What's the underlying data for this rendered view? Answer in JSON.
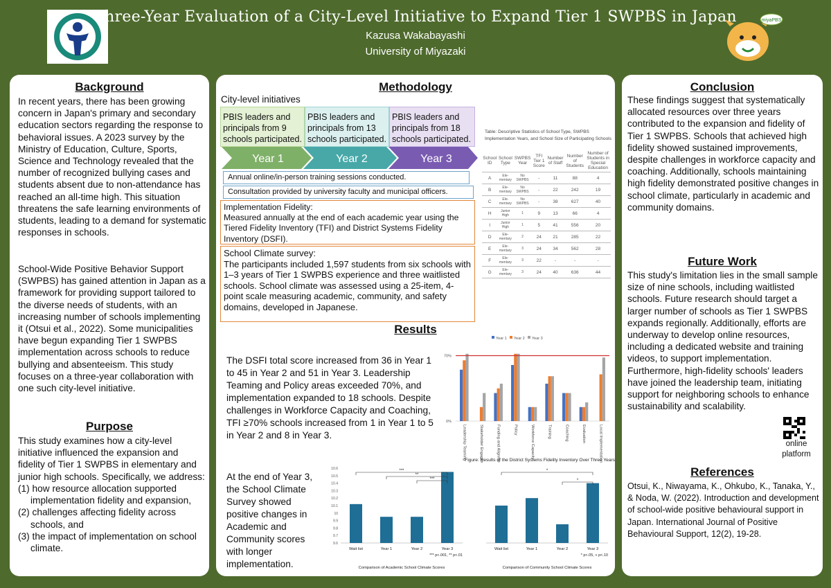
{
  "header": {
    "title": "Three-Year Evaluation of a City-Level Initiative to Expand Tier 1 SWPBS in Japan",
    "author": "Kazusa Wakabayashi",
    "affiliation": "University of Miyazaki",
    "mascot_text": "miyaPBS"
  },
  "background": {
    "heading": "Background",
    "p1": "In recent years, there has been growing concern in Japan's primary and secondary education sectors regarding the response to behavioral issues. A 2023 survey by the Ministry of Education, Culture, Sports, Science and Technology revealed that the number of recognized bullying cases and students absent due to non-attendance has reached an all-time high. This situation threatens the safe learning environments of students, leading to a demand for systematic responses in schools.",
    "p2": "School-Wide Positive Behavior Support (SWPBS) has gained attention in Japan as a framework for providing support tailored to the diverse needs of students, with an increasing number of schools implementing it (Otsui et al., 2022). Some municipalities have begun expanding Tier 1 SWPBS implementation across schools to reduce bullying and absenteeism. This study focuses on a three-year collaboration with one such city-level initiative."
  },
  "purpose": {
    "heading": "Purpose",
    "intro": "This study examines how a city-level initiative influenced the expansion and fidelity of Tier 1 SWPBS in elementary and junior high schools. Specifically, we address:",
    "items": [
      "(1) how resource allocation supported implementation fidelity and expansion,",
      "(2) challenges affecting fidelity across schools, and",
      "(3) the impact of implementation on school climate."
    ]
  },
  "methodology": {
    "heading": "Methodology",
    "subheading": "City-level initiatives",
    "year_boxes": [
      "PBIS leaders and principals from 9 schools participated.",
      "PBIS leaders and principals from 13 schools participated.",
      "PBIS leaders and principals from 18 schools participated."
    ],
    "years": [
      "Year 1",
      "Year 2",
      "Year 3"
    ],
    "bars": [
      "Annual online/in-person training sessions conducted.",
      "Consultation provided by university faculty and municipal officers."
    ],
    "fidelity_title": "Implementation Fidelity:",
    "fidelity_text": "Measured annually at the end of each academic year using the Tiered Fidelity Inventory (TFI) and District Systems Fidelity Inventory (DSFI).",
    "climate_title": "School Climate survey:",
    "climate_text": "The participants included 1,597 students from six schools with 1–3 years of Tier 1 SWPBS experience and three waitlisted schools. School climate was assessed using a 25-item, 4-point scale measuring academic, community, and safety domains, developed in Japanese.",
    "table": {
      "caption": "Table: Descriptive Statistics of School Type, SWPBS Implementation Years, and School Size of Participating Schools",
      "headers": [
        "School ID",
        "School Type",
        "SWPBS Year",
        "TFI Tier 1 Score",
        "Number of Staff",
        "Number of Students",
        "Number of Students in Special Education"
      ],
      "rows": [
        [
          "A",
          "Ele-mentary",
          "No SWPBS",
          "-",
          "11",
          "88",
          "4"
        ],
        [
          "B",
          "Ele-mentary",
          "No SWPBS",
          "-",
          "22",
          "242",
          "19"
        ],
        [
          "C",
          "Ele-mentary",
          "No SWPBS",
          "-",
          "38",
          "627",
          "40"
        ],
        [
          "H",
          "Junior High",
          "1",
          "9",
          "13",
          "66",
          "4"
        ],
        [
          "I",
          "Junior High",
          "1",
          "5",
          "41",
          "556",
          "20"
        ],
        [
          "D",
          "Ele-mentary",
          "2",
          "24",
          "21",
          "285",
          "22"
        ],
        [
          "E",
          "Ele-mentary",
          "3",
          "24",
          "34",
          "562",
          "28"
        ],
        [
          "F",
          "Ele-mentary",
          "3",
          "22",
          "-",
          "-",
          "-"
        ],
        [
          "G",
          "Ele-mentary",
          "3",
          "24",
          "40",
          "636",
          "44"
        ]
      ]
    }
  },
  "results": {
    "heading": "Results",
    "p1": "The DSFI total score increased from 36 in Year 1 to 45 in Year 2 and 51 in Year 3. Leadership Teaming and Policy areas exceeded 70%, and implementation expanded to 18 schools. Despite challenges in Workforce Capacity and Coaching, TFI ≥70% schools increased from 1 in Year 1 to 5 in Year 2 and 8 in Year 3.",
    "p2": "At the end of Year 3, the School Climate Survey showed positive changes in Academic and Community scores with longer implementation."
  },
  "chart_data": [
    {
      "type": "bar",
      "title": "",
      "caption": "Figure: Results of the District Systems Fidelity Inventory Over Three Years",
      "categories": [
        "Leadership Teaming",
        "Stakeholder Engagement",
        "Funding and Alignment",
        "Policy",
        "Workforce Capacity",
        "Training",
        "Coaching",
        "Evaluation",
        "Local Implementation Demonstrations"
      ],
      "series": [
        {
          "name": "Year 1",
          "color": "#4472c4",
          "values": [
            55,
            0,
            30,
            60,
            15,
            40,
            30,
            15,
            0
          ]
        },
        {
          "name": "Year 2",
          "color": "#ed7d31",
          "values": [
            65,
            15,
            35,
            72,
            15,
            48,
            30,
            15,
            50
          ]
        },
        {
          "name": "Year 3",
          "color": "#a5a5a5",
          "values": [
            72,
            30,
            40,
            72,
            15,
            48,
            30,
            20,
            68
          ]
        }
      ],
      "ytick_labels": [
        "0%",
        "70%"
      ],
      "reference_line": 70,
      "ylim": [
        0,
        80
      ],
      "legend": "top"
    },
    {
      "type": "bar",
      "caption": "Comparison of Academic School Climate Scores",
      "categories": [
        "Wait list",
        "Year 1",
        "Year 2",
        "Year 3"
      ],
      "values": [
        10.12,
        9.95,
        9.95,
        10.55
      ],
      "ylim": [
        9.6,
        10.6
      ],
      "yticks": [
        "9.6",
        "9.7",
        "9.8",
        "9.9",
        "10",
        "10.1",
        "10.2",
        "10.3",
        "10.4",
        "10.5",
        "10.6"
      ],
      "significance": [
        "***",
        "**",
        "***"
      ],
      "note": "*** p<.001, ** p<.01",
      "color": "#1f6e96"
    },
    {
      "type": "bar",
      "caption": "Comparison of Community School Climate Scores",
      "categories": [
        "Wait list",
        "Year 1",
        "Year 2",
        "Year 3"
      ],
      "values": [
        10.1,
        10.2,
        9.85,
        10.4
      ],
      "ylim": [
        9.6,
        10.6
      ],
      "significance": [
        "*",
        "*"
      ],
      "note": "* p<.05, + p<.10",
      "color": "#1f6e96"
    }
  ],
  "conclusion": {
    "heading": "Conclusion",
    "text": "These findings suggest that systematically allocated resources over three years contributed to the expansion and fidelity of Tier 1 SWPBS. Schools that achieved high fidelity showed sustained improvements, despite challenges in workforce capacity and coaching. Additionally, schools maintaining high fidelity demonstrated positive changes in school climate, particularly in academic and community domains."
  },
  "future": {
    "heading": "Future Work",
    "text": "This study's limitation lies in the small sample size of nine schools, including waitlisted schools. Future research should target a larger number of schools as Tier 1 SWPBS expands regionally. Additionally, efforts are underway to develop online resources, including a dedicated website and training videos, to support implementation. Furthermore, high-fidelity schools' leaders have joined the leadership team, initiating support for neighboring schools to enhance sustainability and scalability.",
    "qr_label": "online platform"
  },
  "references": {
    "heading": "References",
    "text": "Otsui, K., Niwayama, K., Ohkubo, K., Tanaka, Y., & Noda, W. (2022). Introduction and development of school-wide positive behavioural support in Japan. International Journal of Positive Behavioural Support, 12(2), 19-28."
  }
}
